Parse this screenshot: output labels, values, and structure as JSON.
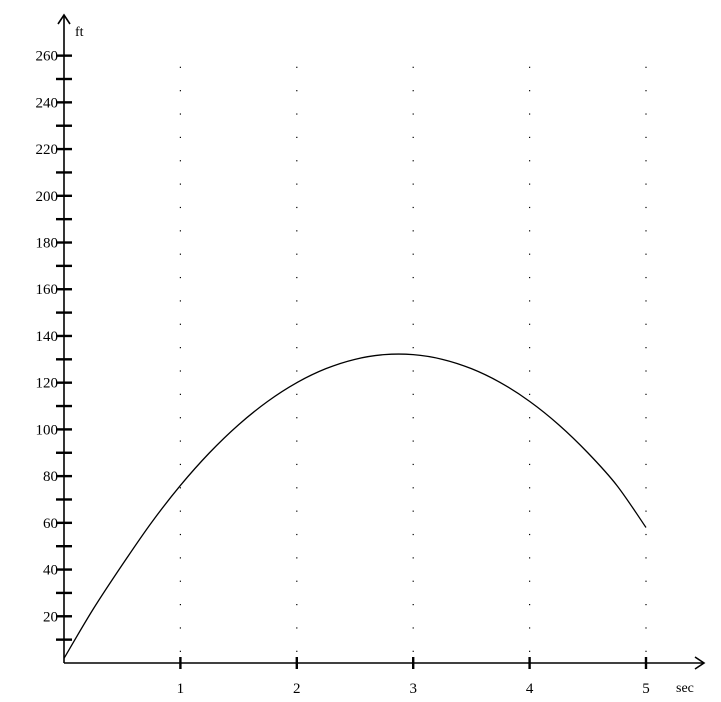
{
  "chart_data": {
    "type": "line",
    "title": "",
    "xlabel": "sec",
    "ylabel": "ft",
    "xlim": [
      0,
      5.45
    ],
    "ylim": [
      0,
      267
    ],
    "x_ticks": [
      1,
      2,
      3,
      4,
      5
    ],
    "x_tick_labels": [
      "1",
      "2",
      "3",
      "4",
      "5"
    ],
    "y_ticks": [
      20,
      40,
      60,
      80,
      100,
      120,
      140,
      160,
      180,
      200,
      220,
      240,
      260
    ],
    "y_tick_labels": [
      "20",
      "40",
      "60",
      "80",
      "100",
      "120",
      "140",
      "160",
      "180",
      "200",
      "220",
      "240",
      "260"
    ],
    "y_minor_ticks": [
      10,
      30,
      50,
      70,
      90,
      110,
      130,
      150,
      170,
      190,
      210,
      230,
      250
    ],
    "grid": "dotted",
    "series": [
      {
        "x": [
          0,
          0.25,
          0.5,
          0.75,
          1,
          1.25,
          1.5,
          1.75,
          2,
          2.25,
          2.5,
          2.75,
          3,
          3.25,
          3.5,
          3.75,
          4,
          4.25,
          4.5,
          4.75,
          5
        ],
        "y": [
          2,
          23,
          42,
          60,
          76,
          90,
          102,
          112,
          120,
          126,
          130,
          132,
          132,
          130,
          126,
          120,
          112,
          102,
          90,
          76,
          58
        ]
      }
    ],
    "colors": {
      "line": "#000000",
      "axes": "#000000",
      "grid": "#000000"
    }
  }
}
